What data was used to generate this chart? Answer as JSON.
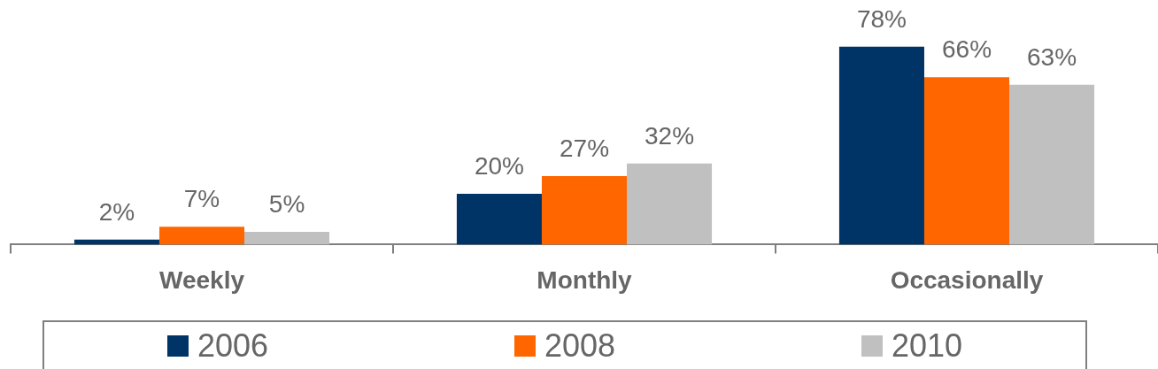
{
  "chart_data": {
    "type": "bar",
    "categories": [
      "Weekly",
      "Monthly",
      "Occasionally"
    ],
    "series": [
      {
        "name": "2006",
        "color": "#003366",
        "values": [
          2,
          20,
          78
        ],
        "value_labels": [
          "2%",
          "20%",
          "78%"
        ]
      },
      {
        "name": "2008",
        "color": "#ff6600",
        "values": [
          7,
          27,
          66
        ],
        "value_labels": [
          "7%",
          "27%",
          "66%"
        ]
      },
      {
        "name": "2010",
        "color": "#c0c0c0",
        "values": [
          5,
          32,
          63
        ],
        "value_labels": [
          "5%",
          "32%",
          "63%"
        ]
      }
    ],
    "legend": "bottom",
    "tick_labels": "x"
  }
}
